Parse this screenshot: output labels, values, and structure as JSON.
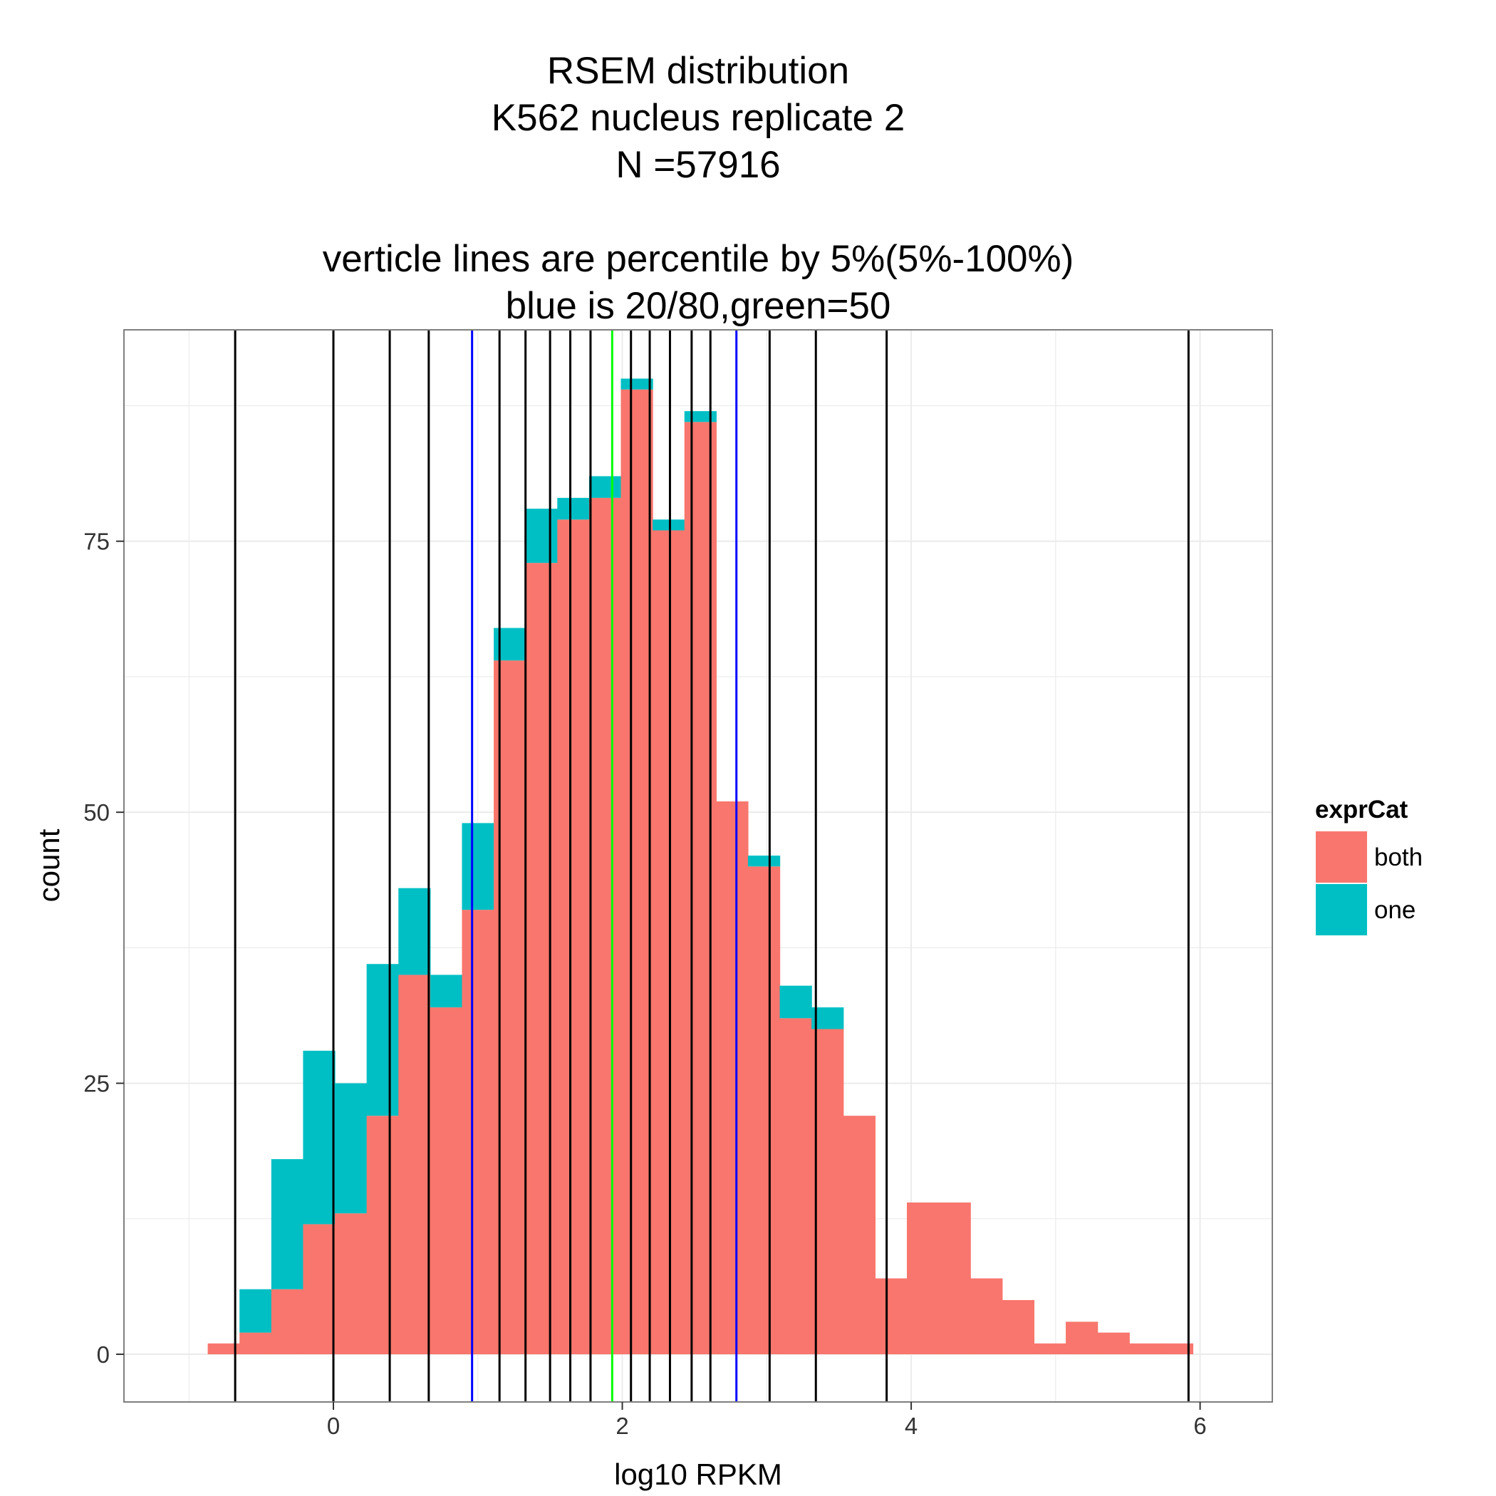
{
  "chart_data": {
    "type": "bar",
    "subtype": "stacked-histogram",
    "title_lines": [
      "RSEM distribution",
      "K562 nucleus replicate 2",
      "N =57916",
      "",
      "verticle lines are percentile by 5%(5%-100%)",
      "blue is 20/80,green=50"
    ],
    "xlabel": "log10 RPKM",
    "ylabel": "count",
    "xlim": [
      -1.45,
      6.5
    ],
    "ylim": [
      -4.4,
      94.5
    ],
    "x_ticks": [
      0,
      2,
      4,
      6
    ],
    "x_tick_labels": [
      "0",
      "2",
      "4",
      "6"
    ],
    "y_ticks": [
      0,
      25,
      50,
      75
    ],
    "y_tick_labels": [
      "0",
      "25",
      "50",
      "75"
    ],
    "bin_width": 0.22,
    "bin_starts": [
      -0.87,
      -0.65,
      -0.43,
      -0.21,
      0.01,
      0.23,
      0.45,
      0.67,
      0.89,
      1.11,
      1.33,
      1.55,
      1.77,
      1.99,
      2.21,
      2.43,
      2.65,
      2.87,
      3.09,
      3.31,
      3.53,
      3.75,
      3.97,
      4.19,
      4.41,
      4.63,
      4.85,
      5.07,
      5.29,
      5.51,
      5.73
    ],
    "series": [
      {
        "name": "both",
        "color": "#F8766D",
        "values": [
          1,
          2,
          6,
          12,
          13,
          22,
          35,
          32,
          41,
          64,
          73,
          77,
          79,
          89,
          76,
          86,
          51,
          45,
          31,
          30,
          22,
          7,
          14,
          14,
          7,
          5,
          1,
          3,
          2,
          1,
          1
        ]
      },
      {
        "name": "one",
        "color": "#00BFC4",
        "values": [
          0,
          4,
          12,
          16,
          12,
          14,
          8,
          3,
          8,
          3,
          5,
          2,
          2,
          1,
          1,
          1,
          0,
          1,
          3,
          2,
          0,
          0,
          0,
          0,
          0,
          0,
          0,
          0,
          0,
          0,
          0
        ]
      }
    ],
    "legend": {
      "title": "exprCat",
      "placement": "right",
      "entries": [
        "both",
        "one"
      ]
    },
    "vlines": [
      {
        "x": -0.68,
        "color": "#000000"
      },
      {
        "x": 0.0,
        "color": "#000000"
      },
      {
        "x": 0.39,
        "color": "#000000"
      },
      {
        "x": 0.66,
        "color": "#000000"
      },
      {
        "x": 0.96,
        "color": "#0000FF"
      },
      {
        "x": 1.15,
        "color": "#000000"
      },
      {
        "x": 1.33,
        "color": "#000000"
      },
      {
        "x": 1.5,
        "color": "#000000"
      },
      {
        "x": 1.64,
        "color": "#000000"
      },
      {
        "x": 1.78,
        "color": "#000000"
      },
      {
        "x": 1.93,
        "color": "#00FF00"
      },
      {
        "x": 2.06,
        "color": "#000000"
      },
      {
        "x": 2.19,
        "color": "#000000"
      },
      {
        "x": 2.33,
        "color": "#000000"
      },
      {
        "x": 2.48,
        "color": "#000000"
      },
      {
        "x": 2.61,
        "color": "#000000"
      },
      {
        "x": 2.79,
        "color": "#0000FF"
      },
      {
        "x": 3.02,
        "color": "#000000"
      },
      {
        "x": 3.34,
        "color": "#000000"
      },
      {
        "x": 3.83,
        "color": "#000000"
      },
      {
        "x": 5.92,
        "color": "#000000"
      }
    ],
    "grid": true,
    "background": "#FFFFFF",
    "panel_border_color": "#7F7F7F",
    "grid_color": "#EBEBEB"
  }
}
